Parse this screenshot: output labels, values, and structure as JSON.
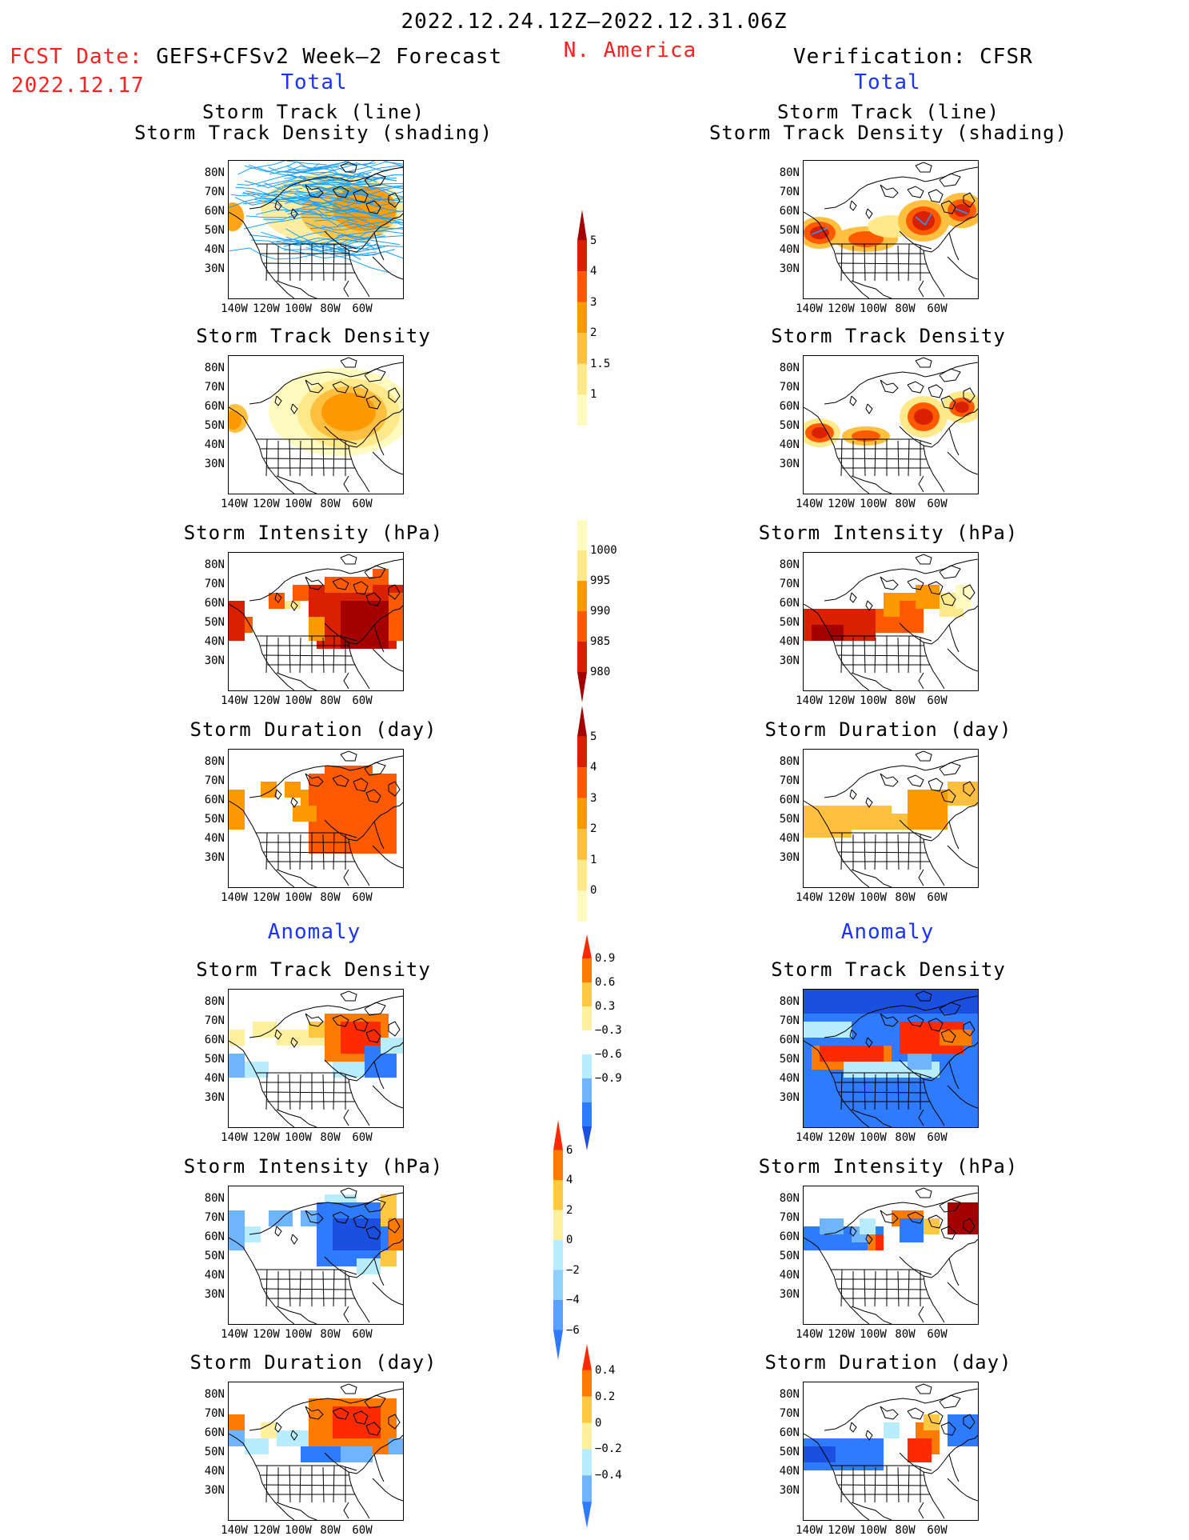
{
  "header": {
    "date_range": "2022.12.24.12Z–2022.12.31.06Z",
    "region": "N. America",
    "fcst_label": "FCST Date:",
    "fcst_model": "GEFS+CFSv2 Week–2 Forecast",
    "fcst_date": "2022.12.17",
    "verification": "Verification: CFSR"
  },
  "sections": {
    "total": "Total",
    "anomaly": "Anomaly"
  },
  "panel_titles": {
    "track_line": "Storm Track (line)",
    "track_shading": "Storm Track Density (shading)",
    "density": "Storm Track Density",
    "intensity": "Storm Intensity (hPa)",
    "duration": "Storm Duration (day)"
  },
  "axes": {
    "lat_labels": [
      "80N",
      "70N",
      "60N",
      "50N",
      "40N",
      "30N"
    ],
    "lon_labels": [
      "140W",
      "120W",
      "100W",
      "80W",
      "60W"
    ]
  },
  "colorbars": {
    "density_total": {
      "labels": [
        "5",
        "4",
        "3",
        "2",
        "1.5",
        "1"
      ],
      "colors": [
        "#a50000",
        "#d92000",
        "#ff5a00",
        "#ff9900",
        "#ffc040",
        "#ffe98a",
        "#fffbc0"
      ]
    },
    "intensity_total": {
      "labels": [
        "1000",
        "995",
        "990",
        "985",
        "980"
      ],
      "colors": [
        "#fffbc0",
        "#ffe98a",
        "#ff9900",
        "#ff5a00",
        "#d92000",
        "#a50000"
      ]
    },
    "duration_total": {
      "labels": [
        "5",
        "4",
        "3",
        "2",
        "1",
        "0"
      ],
      "colors": [
        "#a50000",
        "#d92000",
        "#ff5a00",
        "#ff9900",
        "#ffc040",
        "#ffe98a",
        "#fffbc0"
      ]
    },
    "density_anom": {
      "labels": [
        "0.9",
        "0.6",
        "0.3",
        "−0.3",
        "−0.6",
        "−0.9"
      ],
      "colors": [
        "#ff2a00",
        "#ff7a00",
        "#ffc840",
        "#fff0a0",
        "#ffffff",
        "#b8ecff",
        "#6fb4ff",
        "#2f7bff",
        "#1a4fe0"
      ]
    },
    "intensity_anom": {
      "labels": [
        "6",
        "4",
        "2",
        "0",
        "−2",
        "−4",
        "−6"
      ],
      "colors": [
        "#ff2a00",
        "#ff7a00",
        "#ffc840",
        "#fff0a0",
        "#b8ecff",
        "#8fd0ff",
        "#5aa0ff",
        "#2f7bff"
      ]
    },
    "duration_anom": {
      "labels": [
        "0.4",
        "0.2",
        "0",
        "−0.2",
        "−0.4"
      ],
      "colors": [
        "#ff2a00",
        "#ff7a00",
        "#ffc840",
        "#fff0a0",
        "#b8ecff",
        "#6fb4ff",
        "#2f7bff"
      ]
    }
  }
}
